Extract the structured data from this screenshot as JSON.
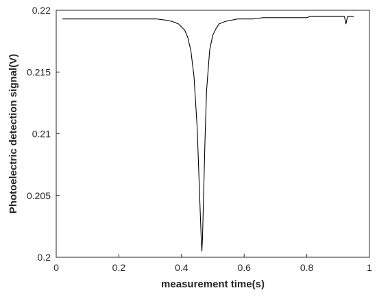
{
  "chart_data": {
    "type": "line",
    "title": "",
    "xlabel": "measurement time(s)",
    "ylabel": "Photoelectric detection signal(V)",
    "xlim": [
      0,
      1
    ],
    "ylim": [
      0.2,
      0.22
    ],
    "xticks": [
      "0",
      "0.2",
      "0.4",
      "0.6",
      "0.8",
      "1"
    ],
    "yticks": [
      "0.2",
      "0.205",
      "0.21",
      "0.215",
      "0.22"
    ],
    "grid": false,
    "legend": "none",
    "line_color": "#000000",
    "series": [
      {
        "x": [
          0.02,
          0.05,
          0.08,
          0.11,
          0.14,
          0.17,
          0.2,
          0.23,
          0.26,
          0.29,
          0.32,
          0.35,
          0.37,
          0.39,
          0.41,
          0.42,
          0.43,
          0.44,
          0.45,
          0.455,
          0.46,
          0.463,
          0.465,
          0.467,
          0.47,
          0.475,
          0.48,
          0.49,
          0.5,
          0.51,
          0.52,
          0.54,
          0.56,
          0.58,
          0.6,
          0.63,
          0.66,
          0.69,
          0.72,
          0.75,
          0.78,
          0.8,
          0.81,
          0.84,
          0.87,
          0.9,
          0.92,
          0.925,
          0.93,
          0.95
        ],
        "y": [
          0.2193,
          0.2193,
          0.2193,
          0.2193,
          0.2193,
          0.2193,
          0.2193,
          0.2193,
          0.2193,
          0.2193,
          0.2193,
          0.2192,
          0.2191,
          0.2189,
          0.2184,
          0.2178,
          0.2167,
          0.2146,
          0.2105,
          0.207,
          0.2035,
          0.2015,
          0.2005,
          0.2015,
          0.2045,
          0.2095,
          0.2135,
          0.2168,
          0.218,
          0.2185,
          0.2189,
          0.2191,
          0.2192,
          0.2193,
          0.2193,
          0.2193,
          0.2194,
          0.2194,
          0.2194,
          0.2194,
          0.2194,
          0.2194,
          0.2195,
          0.2195,
          0.2195,
          0.2195,
          0.2195,
          0.2189,
          0.2195,
          0.2195
        ]
      }
    ]
  }
}
